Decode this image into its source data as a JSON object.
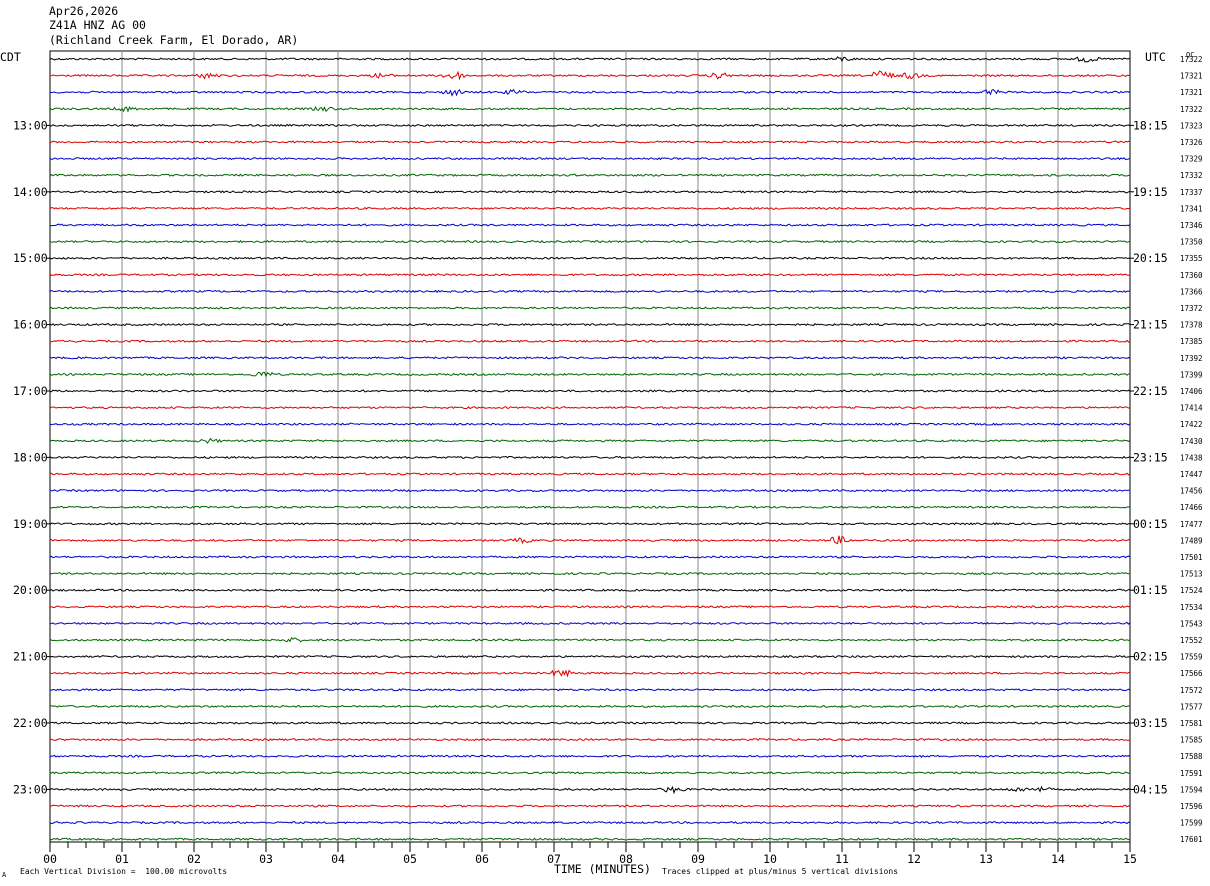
{
  "header": {
    "date": "Apr26,2026",
    "station": "Z41A HNZ AG 00",
    "location": "(Richland Creek Farm, El Dorado, AR)"
  },
  "left_axis_title": "CDT",
  "right_axis_title": "UTC",
  "qc_label": "QC",
  "footer": {
    "vertical_division": "Each Vertical Division =  100.00 microvolts",
    "x_axis_title": "TIME (MINUTES)",
    "clip_note": "Traces clipped at plus/minus 5 vertical divisions",
    "corner_mark": "A"
  },
  "chart_data": {
    "type": "line",
    "xlabel": "TIME (MINUTES)",
    "xlim": [
      0,
      15
    ],
    "x_ticks": [
      "00",
      "01",
      "02",
      "03",
      "04",
      "05",
      "06",
      "07",
      "08",
      "09",
      "10",
      "11",
      "12",
      "13",
      "14",
      "15"
    ],
    "trace_colors": [
      "#000000",
      "#dd0000",
      "#0000cc",
      "#006600"
    ],
    "left_hour_labels": [
      "13:00",
      "14:00",
      "15:00",
      "16:00",
      "17:00",
      "18:00",
      "19:00",
      "20:00",
      "21:00",
      "22:00",
      "23:00"
    ],
    "right_hour_labels": [
      "18:15",
      "19:15",
      "20:15",
      "21:15",
      "22:15",
      "23:15",
      "00:15",
      "01:15",
      "02:15",
      "03:15",
      "04:15"
    ],
    "hour_label_first_trace_index": 4,
    "trace_counts": [
      "17322",
      "17321",
      "17321",
      "17322",
      "17323",
      "17326",
      "17329",
      "17332",
      "17337",
      "17341",
      "17346",
      "17350",
      "17355",
      "17360",
      "17366",
      "17372",
      "17378",
      "17385",
      "17392",
      "17399",
      "17406",
      "17414",
      "17422",
      "17430",
      "17438",
      "17447",
      "17456",
      "17466",
      "17477",
      "17489",
      "17501",
      "17513",
      "17524",
      "17534",
      "17543",
      "17552",
      "17559",
      "17566",
      "17572",
      "17577",
      "17581",
      "17585",
      "17588",
      "17591",
      "17594",
      "17596",
      "17599",
      "17601"
    ],
    "events": [
      {
        "trace": 0,
        "minute": 11.0,
        "amplitude": 2
      },
      {
        "trace": 0,
        "minute": 14.4,
        "amplitude": 3
      },
      {
        "trace": 1,
        "minute": 2.2,
        "amplitude": 3
      },
      {
        "trace": 1,
        "minute": 4.6,
        "amplitude": 2
      },
      {
        "trace": 1,
        "minute": 5.6,
        "amplitude": 5
      },
      {
        "trace": 1,
        "minute": 9.3,
        "amplitude": 3
      },
      {
        "trace": 1,
        "minute": 11.55,
        "amplitude": 6
      },
      {
        "trace": 1,
        "minute": 11.95,
        "amplitude": 3
      },
      {
        "trace": 2,
        "minute": 5.6,
        "amplitude": 3
      },
      {
        "trace": 2,
        "minute": 6.45,
        "amplitude": 2
      },
      {
        "trace": 2,
        "minute": 13.05,
        "amplitude": 3
      },
      {
        "trace": 3,
        "minute": 1.05,
        "amplitude": 2
      },
      {
        "trace": 3,
        "minute": 3.8,
        "amplitude": 2
      },
      {
        "trace": 19,
        "minute": 2.95,
        "amplitude": 3
      },
      {
        "trace": 23,
        "minute": 2.2,
        "amplitude": 2
      },
      {
        "trace": 29,
        "minute": 6.55,
        "amplitude": 2
      },
      {
        "trace": 29,
        "minute": 10.95,
        "amplitude": 4
      },
      {
        "trace": 35,
        "minute": 3.35,
        "amplitude": 2
      },
      {
        "trace": 37,
        "minute": 7.1,
        "amplitude": 4
      },
      {
        "trace": 44,
        "minute": 8.65,
        "amplitude": 3
      },
      {
        "trace": 44,
        "minute": 13.45,
        "amplitude": 2
      },
      {
        "trace": 44,
        "minute": 13.75,
        "amplitude": 2
      }
    ]
  }
}
